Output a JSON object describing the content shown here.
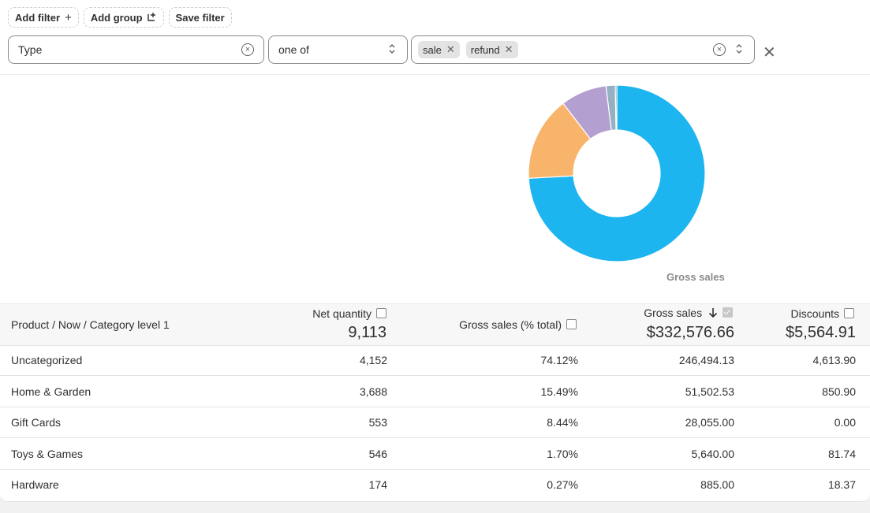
{
  "toolbar": {
    "add_filter": "Add filter",
    "add_filter_icon": "plus-icon",
    "add_group": "Add group",
    "add_group_icon": "add-group-icon",
    "save_filter": "Save filter"
  },
  "filter": {
    "field": "Type",
    "operator": "one of",
    "values": [
      "sale",
      "refund"
    ]
  },
  "chart_data": {
    "type": "pie",
    "variant": "donut",
    "title": "Gross sales",
    "categories": [
      "Uncategorized",
      "Home & Garden",
      "Gift Cards",
      "Toys & Games",
      "Hardware"
    ],
    "values": [
      74.12,
      15.49,
      8.44,
      1.7,
      0.27
    ],
    "colors": [
      "#1db5ef",
      "#f8b46b",
      "#b49fd1",
      "#93b1c1",
      "#5f8a9f"
    ],
    "legend": "none"
  },
  "table": {
    "dimension_header": "Product / Now / Category level 1",
    "columns": [
      {
        "label": "Net quantity",
        "total": "9,113",
        "checked": false
      },
      {
        "label": "Gross sales (% total)",
        "total": "",
        "checked": false
      },
      {
        "label": "Gross sales",
        "total": "$332,576.66",
        "checked": true,
        "sort": "descending"
      },
      {
        "label": "Discounts",
        "total": "$5,564.91",
        "checked": false
      }
    ],
    "rows": [
      {
        "name": "Uncategorized",
        "net_qty": "4,152",
        "pct": "74.12%",
        "gross": "246,494.13",
        "discounts": "4,613.90"
      },
      {
        "name": "Home & Garden",
        "net_qty": "3,688",
        "pct": "15.49%",
        "gross": "51,502.53",
        "discounts": "850.90"
      },
      {
        "name": "Gift Cards",
        "net_qty": "553",
        "pct": "8.44%",
        "gross": "28,055.00",
        "discounts": "0.00"
      },
      {
        "name": "Toys & Games",
        "net_qty": "546",
        "pct": "1.70%",
        "gross": "5,640.00",
        "discounts": "81.74"
      },
      {
        "name": "Hardware",
        "net_qty": "174",
        "pct": "0.27%",
        "gross": "885.00",
        "discounts": "18.37"
      }
    ]
  }
}
